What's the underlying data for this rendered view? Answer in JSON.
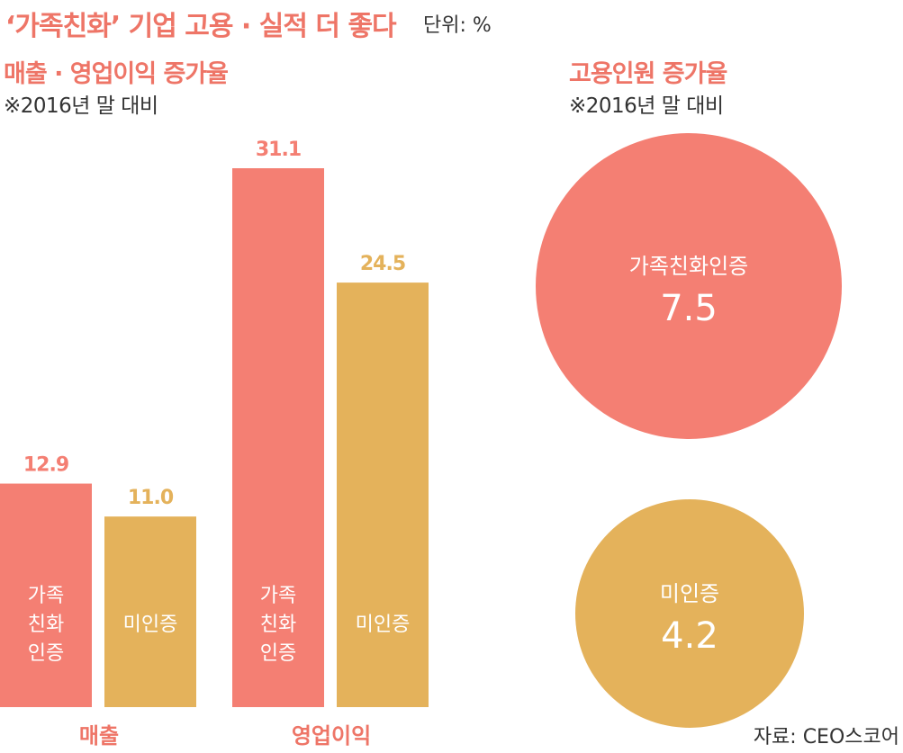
{
  "header": {
    "title": "‘가족친화’ 기업 고용 · 실적 더 좋다",
    "unit": "단위: %"
  },
  "bar_section": {
    "title": "매출 · 영업이익 증가율",
    "note": "※2016년 말 대비"
  },
  "circle_section": {
    "title": "고용인원 증가율",
    "note": "※2016년 말 대비",
    "items": [
      {
        "label": "가족친화인증",
        "value": "7.5"
      },
      {
        "label": "미인증",
        "value": "4.2"
      }
    ]
  },
  "source": "자료: CEO스코어",
  "colors": {
    "certified": "#f47f73",
    "uncertified": "#e4b25b",
    "accent": "#ee7567"
  },
  "chart_data": [
    {
      "type": "bar",
      "title": "매출 · 영업이익 증가율",
      "categories": [
        "매출",
        "영업이익"
      ],
      "series": [
        {
          "name": "가족친화인증",
          "bar_label_lines": [
            "가족",
            "친화",
            "인증"
          ],
          "values": [
            12.9,
            31.1
          ],
          "color": "#f47f73"
        },
        {
          "name": "미인증",
          "bar_label_lines": [
            "미인증"
          ],
          "values": [
            11.0,
            24.5
          ],
          "color": "#e4b25b"
        }
      ],
      "ylim": [
        0,
        31.1
      ],
      "grid": false
    },
    {
      "type": "bubble",
      "title": "고용인원 증가율",
      "categories": [
        "가족친화인증",
        "미인증"
      ],
      "values": [
        7.5,
        4.2
      ],
      "colors": [
        "#f47f73",
        "#e4b25b"
      ]
    }
  ]
}
